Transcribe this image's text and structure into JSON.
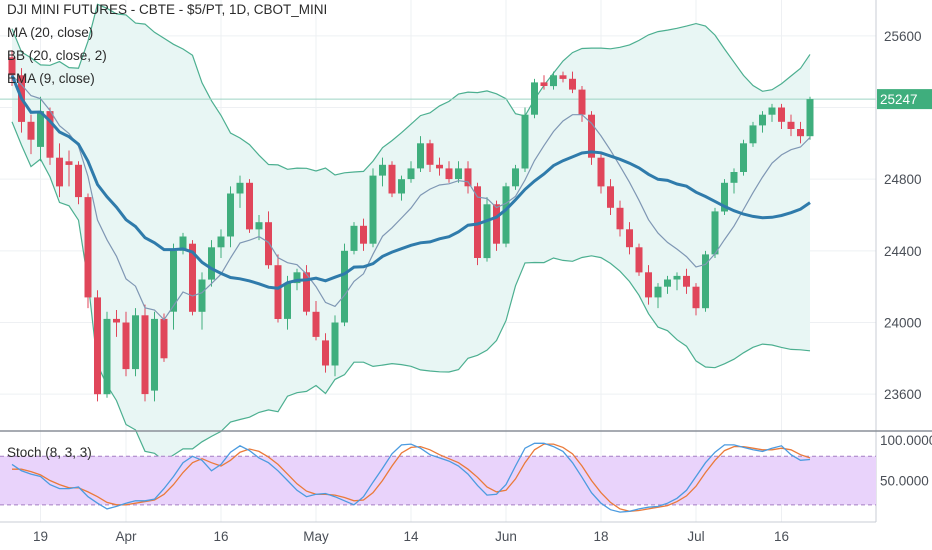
{
  "chart_data": {
    "type": "candlestick",
    "title": "DJI MINI FUTURES - CBTE - $5/PT, 1D, CBOT_MINI",
    "indicators": [
      "MA (20, close)",
      "BB (20, close, 2)",
      "EMA (9, close)"
    ],
    "last_price_label": "25247",
    "last_price": 25247,
    "y_ticks": [
      "25600",
      "24800",
      "24400",
      "24000",
      "23600"
    ],
    "y_tick_values": [
      25600,
      24800,
      24400,
      24000,
      23600
    ],
    "ylim": [
      23400,
      25800
    ],
    "x_ticks": [
      "19",
      "Apr",
      "16",
      "May",
      "14",
      "Jun",
      "18",
      "Jul",
      "16"
    ],
    "x_tick_index": [
      3,
      12,
      22,
      32,
      42,
      52,
      62,
      72,
      81
    ],
    "colors": {
      "up": "#3fae7d",
      "down": "#e0465a",
      "ma": "#2f7bab",
      "ema": "#7f97b4",
      "bb": "#4caf90",
      "band_fill": "#e8f6f4",
      "price_line": "#9dd4c4",
      "stoch_k": "#4c9be0",
      "stoch_d": "#ea7a3a",
      "stoch_band": "#e9d3fb"
    },
    "candles": [
      [
        25480,
        25520,
        25320,
        25380
      ],
      [
        25380,
        25420,
        25060,
        25120
      ],
      [
        25120,
        25160,
        24940,
        25020
      ],
      [
        24980,
        25260,
        24900,
        25180
      ],
      [
        25180,
        25200,
        24880,
        24920
      ],
      [
        24920,
        25000,
        24700,
        24760
      ],
      [
        24900,
        24960,
        24760,
        24880
      ],
      [
        24880,
        24900,
        24660,
        24700
      ],
      [
        24700,
        24720,
        24080,
        24140
      ],
      [
        24140,
        24180,
        23560,
        23600
      ],
      [
        23600,
        24060,
        23580,
        24020
      ],
      [
        24020,
        24070,
        23920,
        24000
      ],
      [
        24000,
        24060,
        23700,
        23740
      ],
      [
        23740,
        24080,
        23700,
        24040
      ],
      [
        24040,
        24100,
        23560,
        23600
      ],
      [
        23620,
        24060,
        23560,
        24020
      ],
      [
        24020,
        24050,
        23780,
        23800
      ],
      [
        24060,
        24440,
        23960,
        24400
      ],
      [
        24400,
        24500,
        24380,
        24480
      ],
      [
        24440,
        24460,
        24040,
        24060
      ],
      [
        24060,
        24280,
        23960,
        24240
      ],
      [
        24240,
        24460,
        24200,
        24420
      ],
      [
        24420,
        24520,
        24360,
        24480
      ],
      [
        24480,
        24760,
        24420,
        24720
      ],
      [
        24720,
        24820,
        24640,
        24780
      ],
      [
        24780,
        24800,
        24500,
        24520
      ],
      [
        24520,
        24600,
        24460,
        24560
      ],
      [
        24560,
        24620,
        24300,
        24320
      ],
      [
        24320,
        24380,
        24000,
        24020
      ],
      [
        24020,
        24260,
        23960,
        24220
      ],
      [
        24220,
        24300,
        24180,
        24280
      ],
      [
        24280,
        24320,
        24040,
        24060
      ],
      [
        24060,
        24120,
        23900,
        23920
      ],
      [
        23900,
        23940,
        23720,
        23760
      ],
      [
        23760,
        24040,
        23700,
        24000
      ],
      [
        24000,
        24440,
        23980,
        24400
      ],
      [
        24400,
        24560,
        24380,
        24540
      ],
      [
        24540,
        24580,
        24400,
        24440
      ],
      [
        24440,
        24860,
        24420,
        24820
      ],
      [
        24820,
        24920,
        24760,
        24880
      ],
      [
        24880,
        24900,
        24700,
        24720
      ],
      [
        24720,
        24820,
        24680,
        24800
      ],
      [
        24800,
        24900,
        24780,
        24860
      ],
      [
        24860,
        25040,
        24840,
        25000
      ],
      [
        25000,
        25020,
        24840,
        24880
      ],
      [
        24880,
        24920,
        24820,
        24860
      ],
      [
        24860,
        24900,
        24780,
        24800
      ],
      [
        24800,
        24900,
        24780,
        24860
      ],
      [
        24860,
        24900,
        24720,
        24760
      ],
      [
        24760,
        24780,
        24320,
        24360
      ],
      [
        24360,
        24700,
        24340,
        24660
      ],
      [
        24660,
        24680,
        24400,
        24440
      ],
      [
        24440,
        24780,
        24420,
        24760
      ],
      [
        24760,
        24880,
        24740,
        24860
      ],
      [
        24860,
        25200,
        24840,
        25160
      ],
      [
        25160,
        25360,
        25140,
        25340
      ],
      [
        25340,
        25380,
        25300,
        25320
      ],
      [
        25320,
        25400,
        25300,
        25380
      ],
      [
        25380,
        25400,
        25340,
        25360
      ],
      [
        25360,
        25400,
        25280,
        25300
      ],
      [
        25300,
        25320,
        25120,
        25160
      ],
      [
        25160,
        25180,
        24880,
        24920
      ],
      [
        24920,
        24940,
        24720,
        24760
      ],
      [
        24760,
        24800,
        24600,
        24640
      ],
      [
        24640,
        24680,
        24480,
        24520
      ],
      [
        24520,
        24560,
        24380,
        24420
      ],
      [
        24420,
        24440,
        24260,
        24280
      ],
      [
        24280,
        24320,
        24100,
        24140
      ],
      [
        24140,
        24220,
        24080,
        24200
      ],
      [
        24200,
        24260,
        24160,
        24240
      ],
      [
        24240,
        24280,
        24180,
        24260
      ],
      [
        24260,
        24300,
        24160,
        24200
      ],
      [
        24200,
        24220,
        24040,
        24080
      ],
      [
        24080,
        24400,
        24060,
        24380
      ],
      [
        24380,
        24640,
        24360,
        24620
      ],
      [
        24620,
        24800,
        24600,
        24780
      ],
      [
        24780,
        24860,
        24720,
        24840
      ],
      [
        24840,
        25020,
        24820,
        25000
      ],
      [
        25000,
        25120,
        24980,
        25100
      ],
      [
        25100,
        25180,
        25060,
        25160
      ],
      [
        25160,
        25220,
        25120,
        25200
      ],
      [
        25200,
        25220,
        25080,
        25120
      ],
      [
        25120,
        25160,
        25040,
        25080
      ],
      [
        25080,
        25120,
        25000,
        25040
      ],
      [
        25040,
        25260,
        25020,
        25247
      ]
    ],
    "stoch": {
      "label": "Stoch (8, 3, 3)",
      "y_ticks": [
        "100.0000",
        "50.0000"
      ],
      "y_tick_values": [
        100,
        50
      ],
      "ylim": [
        0,
        110
      ],
      "band": [
        20,
        80
      ],
      "k": [
        70,
        62,
        58,
        55,
        45,
        40,
        40,
        42,
        30,
        22,
        15,
        18,
        22,
        25,
        25,
        27,
        40,
        55,
        72,
        80,
        75,
        62,
        70,
        85,
        93,
        87,
        78,
        72,
        62,
        50,
        38,
        30,
        33,
        34,
        30,
        25,
        20,
        30,
        48,
        65,
        83,
        94,
        95,
        90,
        82,
        78,
        74,
        68,
        58,
        44,
        32,
        33,
        45,
        68,
        90,
        96,
        96,
        92,
        86,
        72,
        54,
        35,
        22,
        14,
        11,
        12,
        15,
        17,
        18,
        22,
        28,
        38,
        55,
        72,
        85,
        94,
        94,
        91,
        88,
        86,
        90,
        93,
        82,
        75,
        76
      ],
      "d": [
        64,
        64,
        61,
        57,
        50,
        45,
        41,
        41,
        36,
        30,
        23,
        20,
        20,
        22,
        24,
        26,
        33,
        45,
        60,
        72,
        77,
        72,
        68,
        75,
        85,
        89,
        86,
        79,
        70,
        58,
        46,
        37,
        33,
        33,
        32,
        29,
        25,
        26,
        35,
        50,
        68,
        84,
        91,
        92,
        88,
        82,
        77,
        72,
        64,
        54,
        42,
        36,
        38,
        52,
        72,
        88,
        95,
        95,
        91,
        83,
        68,
        50,
        35,
        23,
        15,
        12,
        13,
        15,
        17,
        19,
        24,
        31,
        43,
        60,
        75,
        87,
        92,
        92,
        90,
        88,
        88,
        90,
        88,
        82,
        78
      ]
    }
  }
}
